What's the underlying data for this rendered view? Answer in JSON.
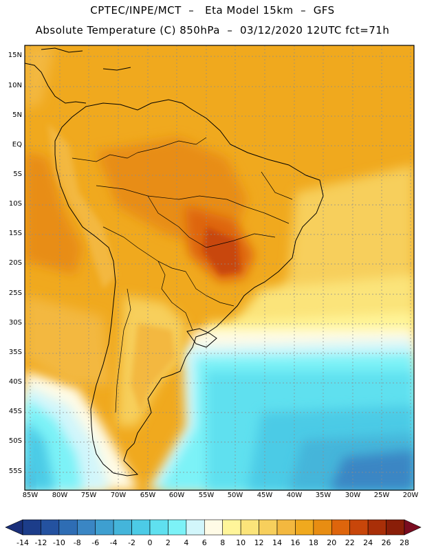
{
  "header": {
    "title_line1": "CPTEC/INPE/MCT  –   Eta Model 15km  –  GFS",
    "title_line2": "Absolute Temperature (C) 850hPa  –  03/12/2020 12UTC fct=71h"
  },
  "map": {
    "lat_labels": [
      "15N",
      "10N",
      "5N",
      "EQ",
      "5S",
      "10S",
      "15S",
      "20S",
      "25S",
      "30S",
      "35S",
      "40S",
      "45S",
      "50S",
      "55S"
    ],
    "lon_labels": [
      "85W",
      "80W",
      "75W",
      "70W",
      "65W",
      "60W",
      "55W",
      "50W",
      "45W",
      "40W",
      "35W",
      "30W",
      "25W",
      "20W"
    ]
  },
  "colorbar": {
    "labels": [
      "-14",
      "-12",
      "-10",
      "-8",
      "-6",
      "-4",
      "-2",
      "0",
      "2",
      "4",
      "6",
      "8",
      "10",
      "12",
      "14",
      "16",
      "18",
      "20",
      "22",
      "24",
      "26",
      "28"
    ],
    "colors": [
      "#1c3d8a",
      "#2452a0",
      "#2e6db4",
      "#3a86c4",
      "#3e9fd0",
      "#44b5da",
      "#4ccbe6",
      "#5fe0ef",
      "#7cf2f7",
      "#d2f6fb",
      "#fffbe6",
      "#fff59a",
      "#fbe47a",
      "#f7cf5c",
      "#f3b83f",
      "#f0a91e",
      "#e88d12",
      "#de650c",
      "#c8460a",
      "#a92f08",
      "#8a1e08"
    ],
    "under_color": "#1a2f7a",
    "over_color": "#7a0c20"
  }
}
